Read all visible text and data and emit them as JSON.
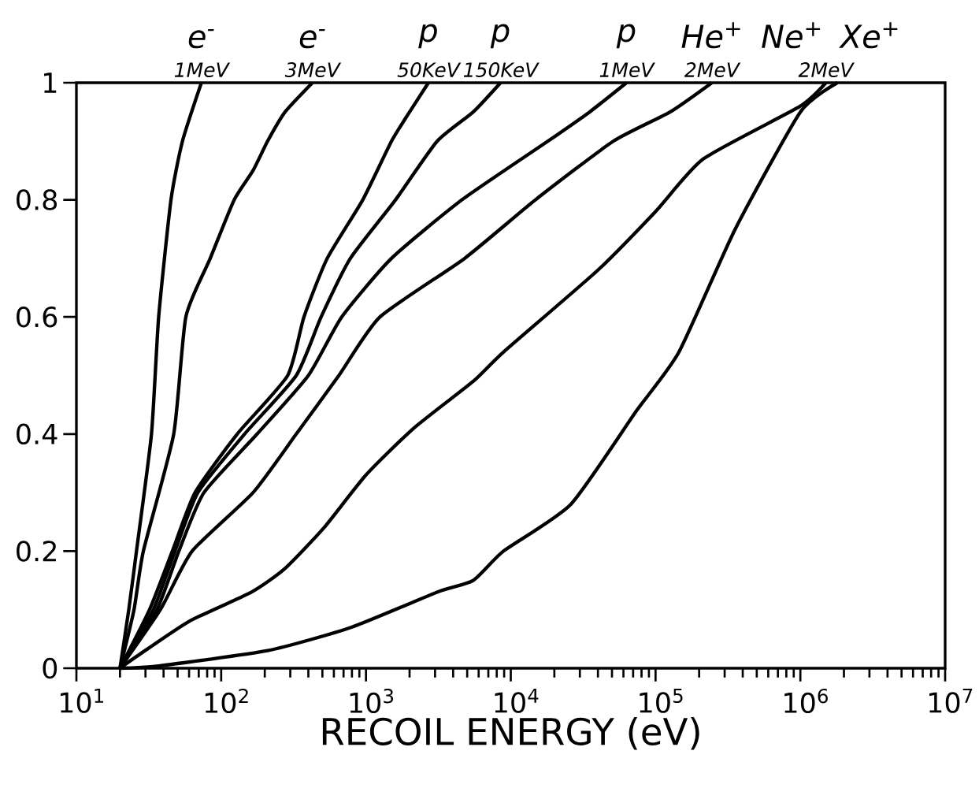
{
  "chart_data": {
    "type": "line",
    "xlabel": "RECOIL ENERGY (eV)",
    "log": "x",
    "marker": "none",
    "xlim": [
      10,
      10000000
    ],
    "ylim": [
      0,
      1
    ],
    "xticks": [
      {
        "value": 10,
        "label": "10$^{1}$"
      },
      {
        "value": 100,
        "label": "10$^{2}$"
      },
      {
        "value": 1000,
        "label": "10$^{3}$"
      },
      {
        "value": 10000,
        "label": "10$^{4}$"
      },
      {
        "value": 100000,
        "label": "10$^{5}$"
      },
      {
        "value": 1000000,
        "label": "10$^{6}$"
      },
      {
        "value": 10000000,
        "label": "10$^{7}$"
      }
    ],
    "yticks": [
      0,
      0.2,
      0.4,
      0.6,
      0.8,
      1
    ],
    "series": [
      {
        "color": "#000000",
        "x": [
          20,
          23,
          26,
          33,
          37,
          45,
          54,
          73
        ],
        "values": [
          0,
          0.1,
          0.2,
          0.4,
          0.6,
          0.8,
          0.9,
          1
        ]
      },
      {
        "color": "#000000",
        "x": [
          20,
          25,
          29,
          47,
          57,
          84,
          123,
          166,
          209,
          276,
          427
        ],
        "values": [
          0,
          0.1,
          0.2,
          0.4,
          0.6,
          0.7,
          0.8,
          0.85,
          0.9,
          0.95,
          1
        ]
      },
      {
        "color": "#000000",
        "x": [
          20,
          32,
          46,
          66,
          129,
          288,
          373,
          540,
          950,
          1500,
          2000,
          2700
        ],
        "values": [
          0,
          0.1,
          0.2,
          0.3,
          0.4,
          0.5,
          0.6,
          0.7,
          0.8,
          0.9,
          0.95,
          1
        ]
      },
      {
        "color": "#000000",
        "x": [
          20,
          34,
          48,
          69,
          145,
          330,
          490,
          780,
          1600,
          3100,
          5500,
          8500
        ],
        "values": [
          0,
          0.1,
          0.2,
          0.3,
          0.4,
          0.5,
          0.6,
          0.7,
          0.8,
          0.9,
          0.95,
          1
        ]
      },
      {
        "color": "#000000",
        "x": [
          20,
          36,
          51,
          76,
          177,
          400,
          680,
          1500,
          4600,
          18000,
          35000,
          63000
        ],
        "values": [
          0,
          0.1,
          0.2,
          0.3,
          0.4,
          0.5,
          0.6,
          0.7,
          0.8,
          0.9,
          0.95,
          1
        ]
      },
      {
        "color": "#000000",
        "x": [
          20,
          38,
          63,
          166,
          330,
          650,
          1250,
          4800,
          14800,
          51000,
          126000,
          245000
        ],
        "values": [
          0,
          0.1,
          0.2,
          0.3,
          0.4,
          0.5,
          0.6,
          0.7,
          0.8,
          0.9,
          0.95,
          1
        ]
      },
      {
        "color": "#000000",
        "x": [
          20,
          26,
          60,
          162,
          275,
          513,
          1000,
          2140,
          5500,
          8900,
          40000,
          100000,
          214000,
          1000000,
          1500000
        ],
        "values": [
          0,
          0.02,
          0.08,
          0.13,
          0.17,
          0.24,
          0.33,
          0.41,
          0.49,
          0.54,
          0.68,
          0.78,
          0.87,
          0.96,
          1
        ]
      },
      {
        "color": "#000000",
        "x": [
          20,
          37,
          209,
          794,
          3100,
          5500,
          8900,
          26000,
          74000,
          145000,
          355000,
          1000000,
          1800000
        ],
        "values": [
          0,
          0.004,
          0.03,
          0.07,
          0.13,
          0.15,
          0.2,
          0.28,
          0.44,
          0.54,
          0.75,
          0.95,
          1
        ]
      }
    ],
    "annotations": [
      {
        "text": "1MeV",
        "x": 73,
        "y": 1
      },
      {
        "text": "3MeV",
        "x": 427,
        "y": 1
      },
      {
        "text": "50KeV",
        "x": 2700,
        "y": 1
      },
      {
        "text": "150KeV",
        "x": 8500,
        "y": 1
      },
      {
        "text": "1MeV",
        "x": 63000,
        "y": 1
      },
      {
        "text": "2MeV",
        "x": 245000,
        "y": 1
      },
      {
        "text": "2MeV",
        "x": 1500000,
        "y": 1
      },
      {
        "text": "e$^{-}$",
        "x": 73,
        "y": 1
      },
      {
        "text": "e$^{-}$",
        "x": 427,
        "y": 1
      },
      {
        "text": "p",
        "x": 2700,
        "y": 1
      },
      {
        "text": "p",
        "x": 8500,
        "y": 1
      },
      {
        "text": "p",
        "x": 63000,
        "y": 1
      },
      {
        "text": "He$^{+}$",
        "x": 245000,
        "y": 1
      },
      {
        "text": "Ne$^{+}$",
        "x": 1500000,
        "y": 1
      },
      {
        "text": "Xe$^{+}$",
        "x": 1800000,
        "y": 1
      }
    ]
  }
}
